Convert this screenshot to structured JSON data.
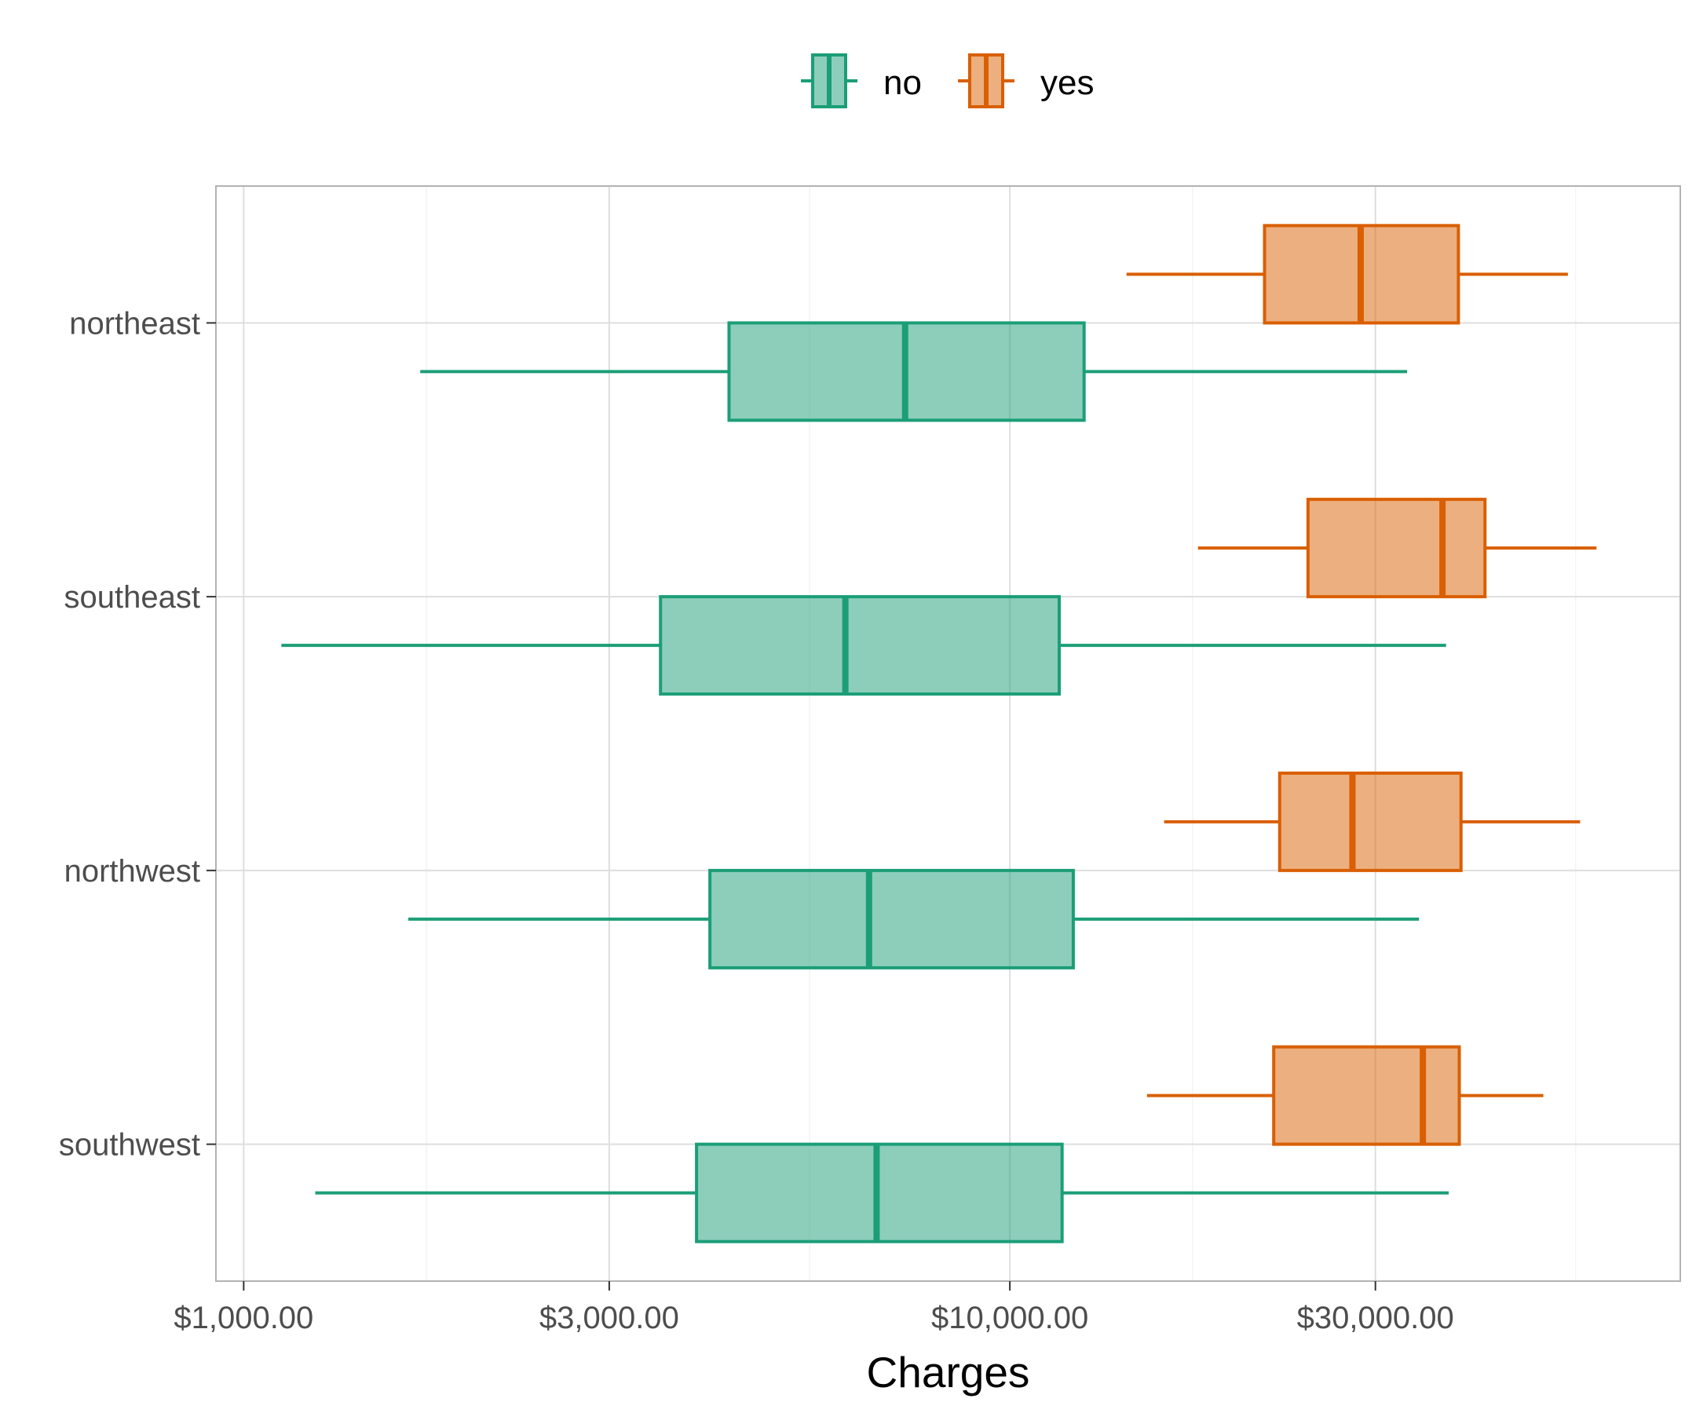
{
  "chart_data": {
    "type": "boxplot",
    "orientation": "horizontal",
    "xlabel": "Charges",
    "ylabel": "",
    "x_scale": "log10",
    "xlim": [
      920,
      75000
    ],
    "x_ticks": [
      1000,
      3000,
      10000,
      30000
    ],
    "x_tick_labels": [
      "$1,000.00",
      "$3,000.00",
      "$10,000.00",
      "$30,000.00"
    ],
    "categories": [
      "northeast",
      "southeast",
      "northwest",
      "southwest"
    ],
    "legend": {
      "position": "top"
    },
    "grid": true,
    "colors": {
      "no": "#1b9e77",
      "yes": "#d95f02"
    },
    "series": [
      {
        "name": "no",
        "color": "#1b9e77",
        "boxes": [
          {
            "category": "northeast",
            "whisker_low": 1700,
            "q1": 4300,
            "median": 7300,
            "q3": 12500,
            "whisker_high": 33000
          },
          {
            "category": "southeast",
            "whisker_low": 1120,
            "q1": 3500,
            "median": 6100,
            "q3": 11600,
            "whisker_high": 37100
          },
          {
            "category": "northwest",
            "whisker_low": 1640,
            "q1": 4060,
            "median": 6550,
            "q3": 12100,
            "whisker_high": 34200
          },
          {
            "category": "southwest",
            "whisker_low": 1240,
            "q1": 3900,
            "median": 6700,
            "q3": 11700,
            "whisker_high": 37400
          }
        ]
      },
      {
        "name": "yes",
        "color": "#d95f02",
        "boxes": [
          {
            "category": "northeast",
            "whisker_low": 14200,
            "q1": 21500,
            "median": 28700,
            "q3": 38500,
            "whisker_high": 53500
          },
          {
            "category": "southeast",
            "whisker_low": 17600,
            "q1": 24500,
            "median": 36700,
            "q3": 41700,
            "whisker_high": 58300
          },
          {
            "category": "northwest",
            "whisker_low": 15900,
            "q1": 22500,
            "median": 28000,
            "q3": 38800,
            "whisker_high": 55500
          },
          {
            "category": "southwest",
            "whisker_low": 15100,
            "q1": 22100,
            "median": 34600,
            "q3": 38600,
            "whisker_high": 49700
          }
        ]
      }
    ]
  }
}
